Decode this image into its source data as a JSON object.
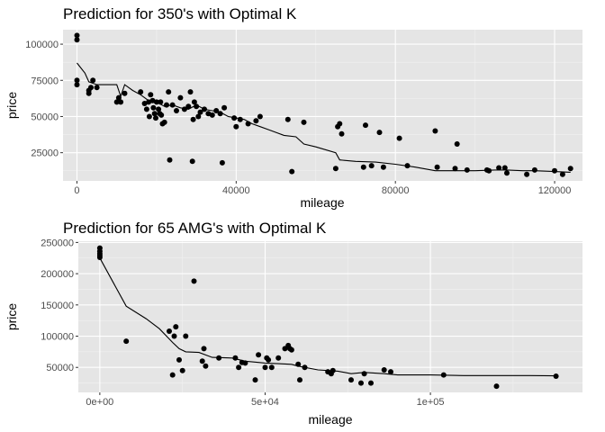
{
  "chart_data": [
    {
      "type": "scatter",
      "title": "Prediction for 350's with Optimal K",
      "xlabel": "mileage",
      "ylabel": "price",
      "xlim": [
        -3500,
        127000
      ],
      "ylim": [
        5500,
        110000
      ],
      "x_ticks": [
        {
          "value": 0,
          "label": "0"
        },
        {
          "value": 40000,
          "label": "40000"
        },
        {
          "value": 80000,
          "label": "80000"
        },
        {
          "value": 120000,
          "label": "120000"
        }
      ],
      "y_ticks": [
        {
          "value": 25000,
          "label": "25000"
        },
        {
          "value": 50000,
          "label": "50000"
        },
        {
          "value": 75000,
          "label": "75000"
        },
        {
          "value": 100000,
          "label": "100000"
        }
      ],
      "grid": true,
      "points": [
        [
          0,
          106000
        ],
        [
          0,
          103000
        ],
        [
          0,
          75000
        ],
        [
          0,
          72000
        ],
        [
          3000,
          68000
        ],
        [
          3000,
          66000
        ],
        [
          3500,
          70000
        ],
        [
          4000,
          75000
        ],
        [
          5000,
          70000
        ],
        [
          10000,
          60000
        ],
        [
          10500,
          63000
        ],
        [
          11000,
          60000
        ],
        [
          12000,
          66000
        ],
        [
          16000,
          67000
        ],
        [
          17000,
          59000
        ],
        [
          17500,
          55000
        ],
        [
          18000,
          60000
        ],
        [
          18200,
          50000
        ],
        [
          18500,
          65000
        ],
        [
          19000,
          61000
        ],
        [
          19200,
          56000
        ],
        [
          19500,
          52000
        ],
        [
          19800,
          49000
        ],
        [
          20000,
          60000
        ],
        [
          20500,
          55000
        ],
        [
          20800,
          52000
        ],
        [
          21000,
          60000
        ],
        [
          21200,
          51000
        ],
        [
          21500,
          45000
        ],
        [
          22000,
          46000
        ],
        [
          22500,
          58000
        ],
        [
          23000,
          67000
        ],
        [
          23300,
          20000
        ],
        [
          24000,
          58000
        ],
        [
          25000,
          54000
        ],
        [
          26000,
          63000
        ],
        [
          27000,
          55000
        ],
        [
          28000,
          57000
        ],
        [
          28500,
          67000
        ],
        [
          29000,
          19000
        ],
        [
          29200,
          48000
        ],
        [
          29500,
          60000
        ],
        [
          30000,
          57000
        ],
        [
          30500,
          50000
        ],
        [
          31000,
          53000
        ],
        [
          32000,
          55000
        ],
        [
          33000,
          52000
        ],
        [
          34000,
          51000
        ],
        [
          35000,
          54000
        ],
        [
          36000,
          52000
        ],
        [
          36500,
          18000
        ],
        [
          37000,
          56000
        ],
        [
          39500,
          49000
        ],
        [
          40000,
          43000
        ],
        [
          41000,
          48000
        ],
        [
          43000,
          45000
        ],
        [
          45000,
          47000
        ],
        [
          46000,
          50000
        ],
        [
          53000,
          48000
        ],
        [
          54000,
          12000
        ],
        [
          57000,
          46000
        ],
        [
          65000,
          14000
        ],
        [
          65500,
          43000
        ],
        [
          66000,
          45000
        ],
        [
          66500,
          38000
        ],
        [
          72000,
          15000
        ],
        [
          72500,
          44000
        ],
        [
          74000,
          16000
        ],
        [
          76000,
          39000
        ],
        [
          77000,
          15000
        ],
        [
          81000,
          35000
        ],
        [
          83000,
          16000
        ],
        [
          90000,
          40000
        ],
        [
          90500,
          15000
        ],
        [
          95000,
          14000
        ],
        [
          95500,
          31000
        ],
        [
          98000,
          13000
        ],
        [
          103000,
          13000
        ],
        [
          103500,
          12500
        ],
        [
          106000,
          14500
        ],
        [
          107500,
          14500
        ],
        [
          108000,
          11000
        ],
        [
          113000,
          10000
        ],
        [
          115000,
          13000
        ],
        [
          120000,
          12500
        ],
        [
          122000,
          10000
        ],
        [
          124000,
          14000
        ]
      ],
      "prediction_line": [
        [
          0,
          87000
        ],
        [
          2000,
          80000
        ],
        [
          3000,
          74000
        ],
        [
          5000,
          72000
        ],
        [
          10000,
          72000
        ],
        [
          11000,
          64000
        ],
        [
          12000,
          72000
        ],
        [
          14000,
          68000
        ],
        [
          16000,
          65000
        ],
        [
          18000,
          61000
        ],
        [
          20000,
          60000
        ],
        [
          22000,
          57000
        ],
        [
          24000,
          58000
        ],
        [
          26000,
          56000
        ],
        [
          28000,
          55000
        ],
        [
          30000,
          58000
        ],
        [
          32000,
          55000
        ],
        [
          34000,
          54000
        ],
        [
          36000,
          53000
        ],
        [
          38000,
          50000
        ],
        [
          40000,
          49000
        ],
        [
          42000,
          48000
        ],
        [
          44000,
          45000
        ],
        [
          46000,
          43000
        ],
        [
          48000,
          41000
        ],
        [
          50000,
          39000
        ],
        [
          52000,
          37000
        ],
        [
          55000,
          36000
        ],
        [
          57000,
          31000
        ],
        [
          60000,
          29000
        ],
        [
          65000,
          25000
        ],
        [
          66000,
          20000
        ],
        [
          70000,
          19000
        ],
        [
          75000,
          18500
        ],
        [
          80000,
          17000
        ],
        [
          85000,
          15000
        ],
        [
          90000,
          12500
        ],
        [
          95000,
          12500
        ],
        [
          100000,
          12500
        ],
        [
          105000,
          13000
        ],
        [
          108000,
          13000
        ],
        [
          112000,
          12500
        ],
        [
          115000,
          12500
        ],
        [
          120000,
          12000
        ],
        [
          124000,
          11500
        ]
      ]
    },
    {
      "type": "scatter",
      "title": "Prediction for 65 AMG's with Optimal K",
      "xlabel": "mileage",
      "ylabel": "price",
      "xlim": [
        -6500,
        146000
      ],
      "ylim": [
        10000,
        252000
      ],
      "x_ticks": [
        {
          "value": 0,
          "label": "0e+00"
        },
        {
          "value": 50000,
          "label": "5e+04"
        },
        {
          "value": 100000,
          "label": "1e+05"
        }
      ],
      "y_ticks": [
        {
          "value": 50000,
          "label": "50000"
        },
        {
          "value": 100000,
          "label": "100000"
        },
        {
          "value": 150000,
          "label": "150000"
        },
        {
          "value": 200000,
          "label": "200000"
        },
        {
          "value": 250000,
          "label": "250000"
        }
      ],
      "grid": true,
      "points": [
        [
          0,
          241000
        ],
        [
          0,
          236000
        ],
        [
          0,
          232000
        ],
        [
          0,
          229000
        ],
        [
          0,
          226000
        ],
        [
          8000,
          92000
        ],
        [
          21000,
          108000
        ],
        [
          22000,
          38000
        ],
        [
          22500,
          100000
        ],
        [
          23000,
          115000
        ],
        [
          24000,
          62000
        ],
        [
          25000,
          45000
        ],
        [
          26000,
          100000
        ],
        [
          28500,
          188000
        ],
        [
          31000,
          60000
        ],
        [
          31500,
          80000
        ],
        [
          32000,
          52000
        ],
        [
          36000,
          65000
        ],
        [
          41000,
          65000
        ],
        [
          42000,
          50000
        ],
        [
          43000,
          58000
        ],
        [
          44000,
          57000
        ],
        [
          47000,
          30000
        ],
        [
          48000,
          70000
        ],
        [
          50000,
          50000
        ],
        [
          50500,
          65000
        ],
        [
          51000,
          62000
        ],
        [
          52000,
          50000
        ],
        [
          54000,
          65000
        ],
        [
          56000,
          80000
        ],
        [
          57000,
          85000
        ],
        [
          57500,
          80000
        ],
        [
          58000,
          78000
        ],
        [
          60000,
          55000
        ],
        [
          60500,
          30000
        ],
        [
          62000,
          50000
        ],
        [
          69000,
          43000
        ],
        [
          70000,
          40000
        ],
        [
          70500,
          45000
        ],
        [
          76000,
          30000
        ],
        [
          79000,
          25000
        ],
        [
          80000,
          40000
        ],
        [
          82000,
          25000
        ],
        [
          86000,
          46000
        ],
        [
          88000,
          43000
        ],
        [
          104000,
          38000
        ],
        [
          120000,
          20000
        ],
        [
          138000,
          36000
        ]
      ],
      "prediction_line": [
        [
          0,
          225000
        ],
        [
          8000,
          148000
        ],
        [
          14000,
          128000
        ],
        [
          18000,
          112000
        ],
        [
          22000,
          90000
        ],
        [
          24000,
          80000
        ],
        [
          26000,
          75000
        ],
        [
          30000,
          74000
        ],
        [
          34000,
          66000
        ],
        [
          40000,
          65000
        ],
        [
          44000,
          60000
        ],
        [
          48000,
          58000
        ],
        [
          50000,
          57000
        ],
        [
          54000,
          56000
        ],
        [
          58000,
          55000
        ],
        [
          60000,
          52000
        ],
        [
          66000,
          46000
        ],
        [
          72000,
          44000
        ],
        [
          76000,
          40000
        ],
        [
          80000,
          42000
        ],
        [
          86000,
          40000
        ],
        [
          90000,
          38000
        ],
        [
          100000,
          38000
        ],
        [
          110000,
          37000
        ],
        [
          120000,
          37000
        ],
        [
          130000,
          37000
        ],
        [
          138000,
          36500
        ]
      ]
    }
  ]
}
